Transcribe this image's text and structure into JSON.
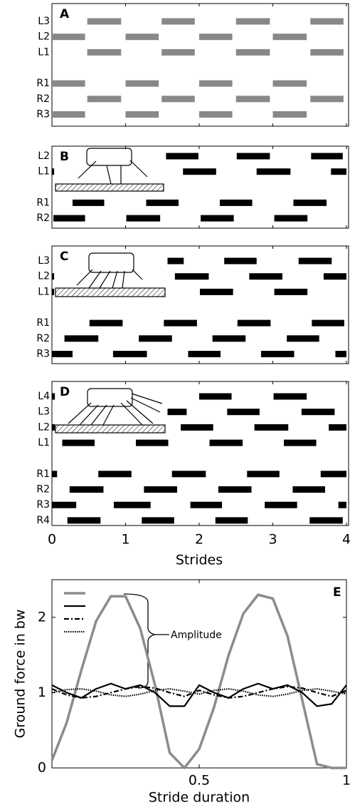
{
  "chart_data": [
    {
      "type": "gait",
      "label": "A",
      "color": "#888888",
      "xlim": [
        0,
        4
      ],
      "rows": [
        "L3",
        "L2",
        "L1",
        "R1",
        "R2",
        "R3"
      ],
      "intervals": [
        [
          [
            0.48,
            0.94
          ],
          [
            1.49,
            1.94
          ],
          [
            2.5,
            2.96
          ],
          [
            3.51,
            3.96
          ]
        ],
        [
          [
            0,
            0.45
          ],
          [
            1.0,
            1.45
          ],
          [
            2.0,
            2.45
          ],
          [
            3.0,
            3.46
          ]
        ],
        [
          [
            0.48,
            0.94
          ],
          [
            1.49,
            1.94
          ],
          [
            2.5,
            2.96
          ],
          [
            3.51,
            3.96
          ]
        ],
        [
          [
            0,
            0.45
          ],
          [
            1.0,
            1.45
          ],
          [
            2.0,
            2.45
          ],
          [
            3.0,
            3.46
          ]
        ],
        [
          [
            0.48,
            0.94
          ],
          [
            1.49,
            1.94
          ],
          [
            2.5,
            2.96
          ],
          [
            3.51,
            3.96
          ]
        ],
        [
          [
            0,
            0.45
          ],
          [
            1.0,
            1.45
          ],
          [
            2.0,
            2.45
          ],
          [
            3.0,
            3.46
          ]
        ]
      ]
    },
    {
      "type": "gait",
      "label": "B",
      "color": "#000000",
      "xlim": [
        0,
        4
      ],
      "rows": [
        "L2",
        "L1",
        "R1",
        "R2"
      ],
      "intervals": [
        [
          [
            1.55,
            1.99
          ],
          [
            2.51,
            2.96
          ],
          [
            3.52,
            3.95
          ]
        ],
        [
          [
            0,
            0.03
          ],
          [
            1.78,
            2.23
          ],
          [
            2.78,
            3.24
          ],
          [
            3.79,
            4.0
          ]
        ],
        [
          [
            0.28,
            0.71
          ],
          [
            1.28,
            1.72
          ],
          [
            2.28,
            2.72
          ],
          [
            3.28,
            3.73
          ]
        ],
        [
          [
            0.02,
            0.45
          ],
          [
            1.01,
            1.47
          ],
          [
            2.02,
            2.47
          ],
          [
            3.02,
            3.47
          ]
        ]
      ]
    },
    {
      "type": "gait",
      "label": "C",
      "color": "#000000",
      "xlim": [
        0,
        4
      ],
      "rows": [
        "L3",
        "L2",
        "L1",
        "R1",
        "R2",
        "R3"
      ],
      "intervals": [
        [
          [
            1.57,
            1.79
          ],
          [
            2.34,
            2.78
          ],
          [
            3.35,
            3.8
          ]
        ],
        [
          [
            0,
            0.03
          ],
          [
            1.67,
            2.13
          ],
          [
            2.68,
            3.13
          ],
          [
            3.69,
            4.0
          ]
        ],
        [
          [
            0,
            0.03
          ],
          [
            2.01,
            2.46
          ],
          [
            3.02,
            3.47
          ]
        ],
        [
          [
            0.51,
            0.96
          ],
          [
            1.52,
            1.97
          ],
          [
            2.52,
            2.97
          ],
          [
            3.53,
            3.97
          ]
        ],
        [
          [
            0.17,
            0.63
          ],
          [
            1.18,
            1.63
          ],
          [
            2.18,
            2.63
          ],
          [
            3.19,
            3.63
          ]
        ],
        [
          [
            0,
            0.28
          ],
          [
            0.83,
            1.29
          ],
          [
            1.85,
            2.29
          ],
          [
            2.84,
            3.29
          ],
          [
            3.85,
            4.0
          ]
        ]
      ]
    },
    {
      "type": "gait",
      "label": "D",
      "color": "#000000",
      "xlim": [
        0,
        4
      ],
      "xticks": [
        0,
        1,
        2,
        3,
        4
      ],
      "xlabel": "Strides",
      "rows": [
        "L4",
        "L3",
        "L2",
        "L1",
        "R1",
        "R2",
        "R3",
        "R4"
      ],
      "intervals": [
        [
          [
            0,
            0.04
          ],
          [
            2.0,
            2.44
          ],
          [
            3.01,
            3.46
          ]
        ],
        [
          [
            1.57,
            1.83
          ],
          [
            2.38,
            2.82
          ],
          [
            3.39,
            3.84
          ]
        ],
        [
          [
            0,
            0.04
          ],
          [
            1.75,
            2.19
          ],
          [
            2.75,
            3.21
          ],
          [
            3.76,
            4.0
          ]
        ],
        [
          [
            0.14,
            0.58
          ],
          [
            1.14,
            1.58
          ],
          [
            2.14,
            2.59
          ],
          [
            3.15,
            3.59
          ]
        ],
        [
          [
            0,
            0.07
          ],
          [
            0.63,
            1.08
          ],
          [
            1.63,
            2.09
          ],
          [
            2.65,
            3.09
          ],
          [
            3.65,
            4.0
          ]
        ],
        [
          [
            0.24,
            0.7
          ],
          [
            1.25,
            1.7
          ],
          [
            2.26,
            2.71
          ],
          [
            3.27,
            3.71
          ]
        ],
        [
          [
            0,
            0.33
          ],
          [
            0.84,
            1.34
          ],
          [
            1.88,
            2.31
          ],
          [
            2.89,
            3.33
          ],
          [
            3.89,
            4.0
          ]
        ],
        [
          [
            0.21,
            0.66
          ],
          [
            1.22,
            1.66
          ],
          [
            2.22,
            2.66
          ],
          [
            3.5,
            3.95
          ]
        ]
      ]
    },
    {
      "type": "line",
      "label": "E",
      "xlabel": "Stride duration",
      "ylabel": "Ground force in bw",
      "annotation": "Amplitude",
      "xlim": [
        0,
        1
      ],
      "ylim": [
        0,
        2.5
      ],
      "xticks": [
        0.5,
        1
      ],
      "yticks": [
        0,
        1,
        2
      ],
      "x": [
        0,
        0.05,
        0.1,
        0.15,
        0.2,
        0.25,
        0.3,
        0.35,
        0.4,
        0.45,
        0.5,
        0.55,
        0.6,
        0.65,
        0.7,
        0.75,
        0.8,
        0.85,
        0.9,
        0.95,
        1
      ],
      "series": [
        {
          "color": "#8c8c8c",
          "linestyle": "solid",
          "values": [
            0.1,
            0.6,
            1.3,
            1.95,
            2.28,
            2.28,
            1.85,
            1.1,
            0.2,
            0,
            0.25,
            0.8,
            1.5,
            2.05,
            2.3,
            2.25,
            1.75,
            0.9,
            0.05,
            0,
            0
          ]
        },
        {
          "color": "#000000",
          "linestyle": "solid",
          "values": [
            1.1,
            1.0,
            0.93,
            1.05,
            1.12,
            1.05,
            1.1,
            1.0,
            0.82,
            0.82,
            1.1,
            1.0,
            0.93,
            1.05,
            1.12,
            1.05,
            1.1,
            1.0,
            0.82,
            0.85,
            1.1
          ]
        },
        {
          "color": "#000000",
          "linestyle": "dashdot",
          "values": [
            1.05,
            0.97,
            0.93,
            0.95,
            1.0,
            1.05,
            1.08,
            1.06,
            1.0,
            0.95,
            1.03,
            0.97,
            0.93,
            0.95,
            1.0,
            1.05,
            1.08,
            1.06,
            1.0,
            0.95,
            1.03
          ]
        },
        {
          "color": "#000000",
          "linestyle": "dotted",
          "values": [
            1.0,
            1.04,
            1.05,
            1.02,
            0.97,
            0.95,
            0.98,
            1.03,
            1.05,
            1.02,
            0.98,
            1.03,
            1.05,
            1.02,
            0.97,
            0.95,
            0.98,
            1.03,
            1.05,
            1.02,
            0.98
          ]
        }
      ]
    }
  ]
}
